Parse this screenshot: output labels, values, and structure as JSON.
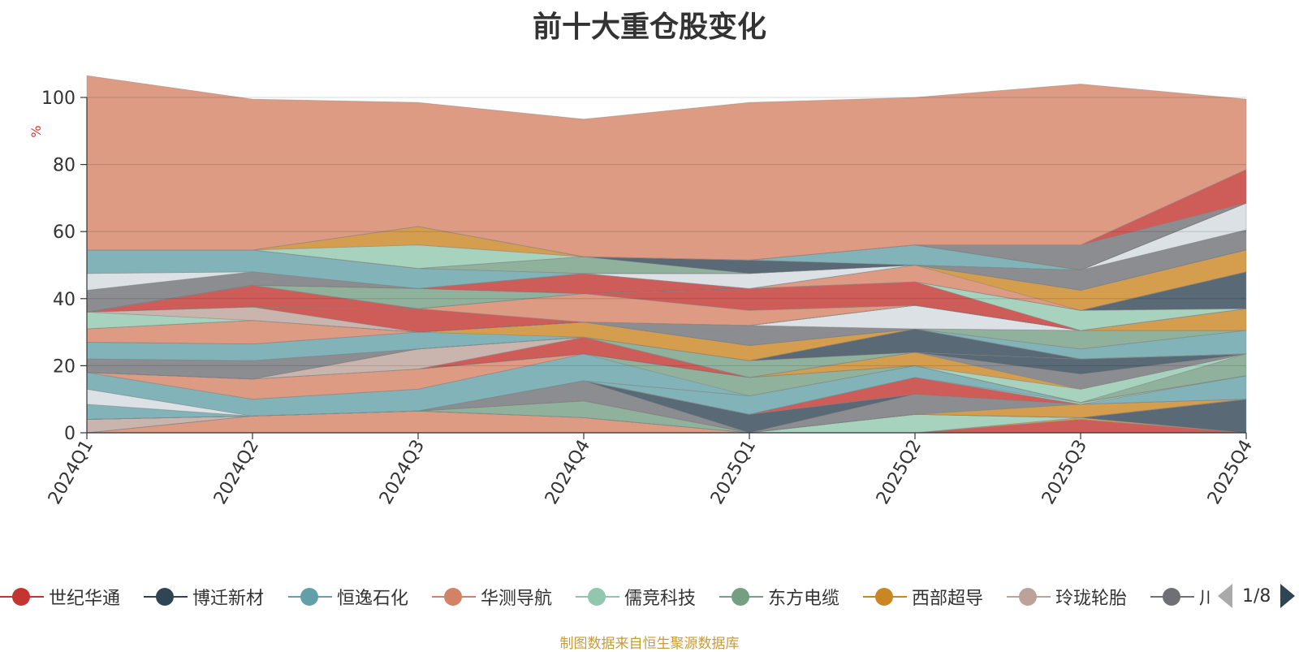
{
  "title": "前十大重仓股变化",
  "source_note": "制图数据来自恒生聚源数据库",
  "pager": {
    "text": "1/8",
    "prev_icon": "triangle-left-icon",
    "next_icon": "triangle-right-icon"
  },
  "legend": [
    {
      "label": "世纪华通",
      "color": "#c23531"
    },
    {
      "label": "博迁新材",
      "color": "#2f4554"
    },
    {
      "label": "恒逸石化",
      "color": "#61a0a8"
    },
    {
      "label": "华测导航",
      "color": "#d48265"
    },
    {
      "label": "儒竞科技",
      "color": "#91c7ae"
    },
    {
      "label": "东方电缆",
      "color": "#749f83"
    },
    {
      "label": "西部超导",
      "color": "#ca8622"
    },
    {
      "label": "玲珑轮胎",
      "color": "#bda29a"
    },
    {
      "label": "川",
      "color": "#6e7074"
    }
  ],
  "chart_data": {
    "type": "area",
    "stacked": true,
    "categories": [
      "2024Q1",
      "2024Q2",
      "2024Q3",
      "2024Q4",
      "2025Q1",
      "2025Q2",
      "2025Q3",
      "2025Q4"
    ],
    "ylabel": "%",
    "ylim": [
      0,
      100
    ],
    "yticks": [
      0,
      20,
      40,
      60,
      80,
      100
    ],
    "grid": true,
    "series": [
      {
        "color": "#d48265",
        "values": [
          0,
          5,
          6.5,
          4.5,
          0,
          0,
          0,
          0
        ]
      },
      {
        "color": "#c23531",
        "values": [
          0,
          0,
          0,
          0,
          0,
          0,
          4,
          0
        ]
      },
      {
        "color": "#ca8622",
        "values": [
          0,
          0,
          0,
          0,
          0,
          0,
          0.5,
          0
        ]
      },
      {
        "color": "#91c7ae",
        "values": [
          0,
          0,
          0,
          0,
          0,
          5.5,
          0,
          0
        ]
      },
      {
        "color": "#2f4554",
        "values": [
          0,
          0,
          0,
          0,
          0,
          0,
          0,
          10
        ]
      },
      {
        "color": "#bda29a",
        "values": [
          4,
          0,
          0,
          0,
          0,
          0,
          0,
          0
        ]
      },
      {
        "color": "#749f83",
        "values": [
          0,
          0,
          0,
          5,
          0,
          0,
          0,
          0
        ]
      },
      {
        "color": "#d48265",
        "values": [
          0,
          0,
          0,
          0,
          0,
          0,
          0,
          0
        ]
      },
      {
        "color": "#ca8622",
        "values": [
          0,
          0,
          0,
          0,
          0,
          0,
          4,
          0
        ]
      },
      {
        "color": "#6e7074",
        "values": [
          0,
          0,
          0,
          6,
          0,
          6,
          0,
          0
        ]
      },
      {
        "color": "#2f4554",
        "values": [
          0,
          0,
          0,
          0,
          5.5,
          0,
          0,
          0
        ]
      },
      {
        "color": "#c23531",
        "values": [
          0,
          0,
          0,
          0,
          0,
          5,
          0,
          0
        ]
      },
      {
        "color": "#61a0a8",
        "values": [
          0,
          0,
          0,
          0,
          0,
          0,
          0,
          7
        ]
      },
      {
        "color": "#ca8622",
        "values": [
          0,
          0,
          0,
          0,
          0,
          0,
          0,
          0
        ]
      },
      {
        "color": "#91c7ae",
        "values": [
          0,
          0,
          0,
          0,
          0,
          0,
          0.5,
          0
        ]
      },
      {
        "color": "#61a0a8",
        "values": [
          4.5,
          0,
          0,
          0,
          5.5,
          3.5,
          0,
          0
        ]
      },
      {
        "color": "#d3d9e0",
        "values": [
          4.5,
          0,
          0,
          0,
          0,
          0,
          0,
          0
        ]
      },
      {
        "color": "#61a0a8",
        "values": [
          5,
          5,
          6.5,
          8,
          0,
          0,
          0,
          0
        ]
      },
      {
        "color": "#749f83",
        "values": [
          0,
          0,
          0,
          0,
          5.5,
          0,
          0,
          0
        ]
      },
      {
        "color": "#d48265",
        "values": [
          0,
          6,
          6,
          0,
          0,
          0,
          0,
          0
        ]
      },
      {
        "color": "#749f83",
        "values": [
          0,
          0,
          0,
          0,
          0,
          0,
          0,
          6.5
        ]
      },
      {
        "color": "#91c7ae",
        "values": [
          0,
          0,
          0,
          0,
          0,
          0,
          4,
          0
        ]
      },
      {
        "color": "#ca8622",
        "values": [
          0,
          0,
          0,
          0,
          0,
          4,
          0,
          0
        ]
      },
      {
        "color": "#6e7074",
        "values": [
          0,
          0,
          0,
          0,
          0,
          0,
          4.5,
          0
        ]
      },
      {
        "color": "#c23531",
        "values": [
          0,
          0,
          0,
          5,
          0,
          0,
          0,
          0
        ]
      },
      {
        "color": "#bda29a",
        "values": [
          0,
          0,
          6,
          0,
          0,
          0,
          0,
          0
        ]
      },
      {
        "color": "#2f4554",
        "values": [
          0,
          0,
          0,
          0,
          0,
          0,
          4.5,
          0
        ]
      },
      {
        "color": "#749f83",
        "values": [
          0,
          0,
          0,
          0,
          5,
          0,
          0,
          0
        ]
      },
      {
        "color": "#6e7074",
        "values": [
          4,
          5.5,
          0,
          0,
          0,
          0,
          0,
          0
        ]
      },
      {
        "color": "#2f4554",
        "values": [
          0,
          0,
          0,
          0,
          0,
          7,
          0,
          0
        ]
      },
      {
        "color": "#d3d9e0",
        "values": [
          0,
          0,
          0,
          0,
          0,
          0,
          0,
          0
        ]
      },
      {
        "color": "#61a0a8",
        "values": [
          5,
          5,
          5,
          0,
          0,
          0,
          3,
          7
        ]
      },
      {
        "color": "#ca8622",
        "values": [
          0,
          0,
          0,
          4.5,
          4.5,
          0,
          0,
          0
        ]
      },
      {
        "color": "#749f83",
        "values": [
          0,
          0,
          0,
          0,
          0,
          0,
          5.5,
          0
        ]
      },
      {
        "color": "#d48265",
        "values": [
          4,
          7,
          0,
          0,
          0,
          0,
          0,
          0
        ]
      },
      {
        "color": "#6e7074",
        "values": [
          0,
          0,
          0,
          0,
          6,
          0,
          0,
          0
        ]
      },
      {
        "color": "#d3d9e0",
        "values": [
          0,
          0,
          0,
          0,
          0,
          7,
          0,
          0
        ]
      },
      {
        "color": "#ca8622",
        "values": [
          0,
          0,
          0,
          0,
          0,
          0,
          0,
          6.5
        ]
      },
      {
        "color": "#91c7ae",
        "values": [
          5,
          0,
          0,
          0,
          0,
          0,
          0,
          0
        ]
      },
      {
        "color": "#bda29a",
        "values": [
          0,
          4,
          0,
          0,
          0,
          0,
          0,
          0
        ]
      },
      {
        "color": "#c23531",
        "values": [
          0,
          0,
          7,
          0,
          0,
          0,
          0,
          0
        ]
      },
      {
        "color": "#d48265",
        "values": [
          0,
          0,
          0,
          8.5,
          4.5,
          0,
          0,
          0
        ]
      },
      {
        "color": "#c23531",
        "values": [
          0,
          6.5,
          0,
          0,
          6.5,
          7,
          0,
          0
        ]
      },
      {
        "color": "#91c7ae",
        "values": [
          0,
          0,
          0,
          0,
          0,
          0,
          6,
          0
        ]
      },
      {
        "color": "#2f4554",
        "values": [
          0,
          0,
          0,
          0,
          0,
          0,
          0,
          11
        ]
      },
      {
        "color": "#749f83",
        "values": [
          0,
          0,
          6,
          0,
          0,
          0,
          0,
          0
        ]
      },
      {
        "color": "#d48265",
        "values": [
          0,
          0,
          0,
          0,
          0,
          5,
          0,
          0
        ]
      },
      {
        "color": "#ca8622",
        "values": [
          0,
          0,
          0,
          0,
          0,
          0,
          6,
          6.5
        ]
      },
      {
        "color": "#c23531",
        "values": [
          0,
          0,
          0,
          6,
          0,
          0,
          0,
          0
        ]
      },
      {
        "color": "#6e7074",
        "values": [
          6.5,
          4,
          0,
          0,
          0,
          0,
          0,
          0
        ]
      },
      {
        "color": "#6e7074",
        "values": [
          0,
          0,
          0,
          0,
          0,
          0,
          6,
          6
        ]
      },
      {
        "color": "#d3d9e0",
        "values": [
          5,
          0,
          0,
          0,
          4.5,
          0,
          0,
          0
        ]
      },
      {
        "color": "#61a0a8",
        "values": [
          7,
          6.5,
          6,
          0,
          0,
          0,
          0,
          0
        ]
      },
      {
        "color": "#d3d9e0",
        "values": [
          0,
          0,
          0,
          0,
          0,
          0,
          0,
          8
        ]
      },
      {
        "color": "#749f83",
        "values": [
          0,
          0,
          0,
          5,
          0,
          0,
          0,
          0
        ]
      },
      {
        "color": "#2f4554",
        "values": [
          0,
          0,
          0,
          0,
          4,
          0,
          0,
          0
        ]
      },
      {
        "color": "#61a0a8",
        "values": [
          0,
          0,
          0,
          0,
          0,
          6,
          0,
          0
        ]
      },
      {
        "color": "#91c7ae",
        "values": [
          0,
          0,
          7,
          0,
          0,
          0,
          0,
          0
        ]
      },
      {
        "color": "#ca8622",
        "values": [
          0,
          0,
          5.5,
          0,
          0,
          0,
          0,
          0
        ]
      },
      {
        "color": "#6e7074",
        "values": [
          0,
          0,
          0,
          0,
          0,
          0,
          7.5,
          0
        ]
      },
      {
        "color": "#c23531",
        "values": [
          0,
          0,
          0,
          0,
          0,
          0,
          0,
          10
        ]
      },
      {
        "color": "#d48265",
        "values": [
          52,
          45,
          37,
          41,
          47,
          44,
          48,
          21
        ]
      }
    ]
  }
}
